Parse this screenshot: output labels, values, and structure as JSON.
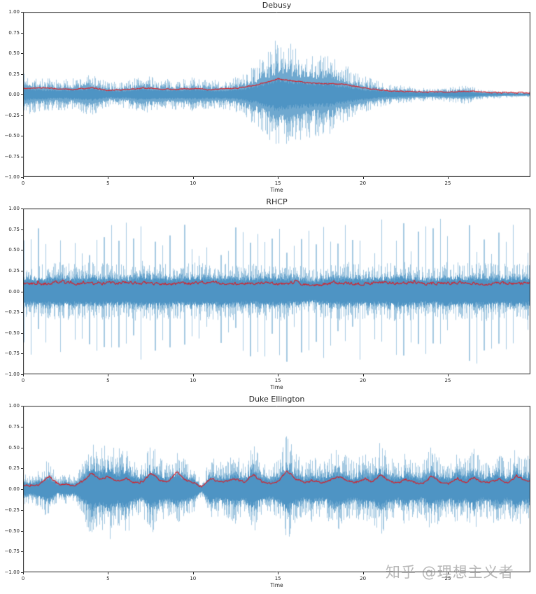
{
  "figure": {
    "background": "#ffffff"
  },
  "watermark": {
    "text": "知乎 @理想主义者",
    "color": "#8c8c8c"
  },
  "chart_data": [
    {
      "type": "area",
      "title": "Debusy",
      "xlabel": "Time",
      "xlim": [
        0,
        29.86
      ],
      "ylim": [
        -1,
        1
      ],
      "grid": false,
      "xtick_values": [
        0,
        5,
        10,
        15,
        20,
        25
      ],
      "xtick_labels": [
        "0",
        "5",
        "10",
        "15",
        "20",
        "25"
      ],
      "ytick_values": [
        1.0,
        0.75,
        0.5,
        0.25,
        0.0,
        -0.25,
        -0.5,
        -0.75,
        -1.0
      ],
      "ytick_labels": [
        "1.00",
        "0.75",
        "0.50",
        "0.25",
        "0.00",
        "−0.25",
        "−0.50",
        "−0.75",
        "−1.00"
      ],
      "series": [
        {
          "name": "waveform-envelope",
          "color": "rgba(31,119,180,0.40)",
          "dt": 1.0,
          "values": [
            0.22,
            0.18,
            0.16,
            0.17,
            0.22,
            0.13,
            0.14,
            0.21,
            0.16,
            0.16,
            0.18,
            0.15,
            0.16,
            0.22,
            0.38,
            0.6,
            0.5,
            0.44,
            0.42,
            0.3,
            0.2,
            0.13,
            0.1,
            0.08,
            0.07,
            0.08,
            0.1,
            0.05,
            0.04,
            0.03
          ]
        },
        {
          "name": "mean-amplitude-line",
          "color": "#dc1b22",
          "dt": 1.0,
          "values": [
            0.07,
            0.08,
            0.07,
            0.06,
            0.08,
            0.05,
            0.06,
            0.08,
            0.07,
            0.06,
            0.07,
            0.06,
            0.07,
            0.09,
            0.13,
            0.19,
            0.16,
            0.14,
            0.13,
            0.12,
            0.08,
            0.05,
            0.04,
            0.03,
            0.03,
            0.03,
            0.04,
            0.03,
            0.02,
            0.02
          ]
        }
      ],
      "texture": {
        "noise_base": 0.42,
        "noise_var": 0.75,
        "noise_pow": 1.4,
        "mid_frac": 0.6,
        "core_frac": 0.3,
        "spike": null,
        "rms_jitter": 0.012,
        "rms_spike": 0
      }
    },
    {
      "type": "area",
      "title": "RHCP",
      "xlabel": "Time",
      "xlim": [
        0,
        29.86
      ],
      "ylim": [
        -1,
        1
      ],
      "grid": false,
      "xtick_values": [
        0,
        5,
        10,
        15,
        20,
        25
      ],
      "xtick_labels": [
        "0",
        "5",
        "10",
        "15",
        "20",
        "25"
      ],
      "ytick_values": [
        1.0,
        0.75,
        0.5,
        0.25,
        0.0,
        -0.25,
        -0.5,
        -0.75,
        -1.0
      ],
      "ytick_labels": [
        "1.00",
        "0.75",
        "0.50",
        "0.25",
        "0.00",
        "−0.25",
        "−0.50",
        "−0.75",
        "−1.00"
      ],
      "series": [
        {
          "name": "waveform-envelope",
          "color": "rgba(31,119,180,0.40)",
          "dt": 1.0,
          "values": [
            0.3,
            0.28,
            0.32,
            0.29,
            0.31,
            0.3,
            0.28,
            0.33,
            0.3,
            0.29,
            0.31,
            0.3,
            0.32,
            0.28,
            0.3,
            0.31,
            0.29,
            0.24,
            0.3,
            0.31,
            0.3,
            0.29,
            0.32,
            0.3,
            0.28,
            0.31,
            0.3,
            0.32,
            0.29,
            0.3
          ]
        },
        {
          "name": "mean-amplitude-line",
          "color": "#dc1b22",
          "dt": 1.0,
          "values": [
            0.1,
            0.09,
            0.11,
            0.1,
            0.09,
            0.1,
            0.11,
            0.1,
            0.09,
            0.1,
            0.1,
            0.11,
            0.09,
            0.1,
            0.1,
            0.09,
            0.11,
            0.07,
            0.1,
            0.1,
            0.09,
            0.11,
            0.1,
            0.1,
            0.09,
            0.1,
            0.11,
            0.09,
            0.1,
            0.1
          ]
        }
      ],
      "texture": {
        "noise_base": 0.45,
        "noise_var": 0.7,
        "noise_pow": 1.3,
        "mid_frac": 0.6,
        "core_frac": 0.5,
        "spike": {
          "period": 0.43,
          "min": 0.42,
          "max": 0.88,
          "prob": 0.8
        },
        "rms_jitter": 0.03,
        "rms_spike": 0.06
      }
    },
    {
      "type": "area",
      "title": "Duke Ellington",
      "xlabel": "Time",
      "xlim": [
        0,
        29.86
      ],
      "ylim": [
        -1,
        1
      ],
      "grid": false,
      "xtick_values": [
        0,
        5,
        10,
        15,
        20,
        25
      ],
      "xtick_labels": [
        "0",
        "5",
        "10",
        "15",
        "20",
        "25"
      ],
      "ytick_values": [
        1.0,
        0.75,
        0.5,
        0.25,
        0.0,
        -0.25,
        -0.5,
        -0.75,
        -1.0
      ],
      "ytick_labels": [
        "1.00",
        "0.75",
        "0.50",
        "0.25",
        "0.00",
        "−0.25",
        "−0.50",
        "−0.75",
        "−1.00"
      ],
      "series": [
        {
          "name": "waveform-envelope",
          "color": "rgba(31,119,180,0.40)",
          "dt": 0.5,
          "values": [
            0.16,
            0.14,
            0.2,
            0.3,
            0.12,
            0.16,
            0.12,
            0.28,
            0.48,
            0.4,
            0.52,
            0.36,
            0.48,
            0.3,
            0.26,
            0.46,
            0.32,
            0.26,
            0.38,
            0.3,
            0.24,
            0.06,
            0.32,
            0.26,
            0.3,
            0.36,
            0.26,
            0.46,
            0.28,
            0.22,
            0.3,
            0.52,
            0.36,
            0.26,
            0.32,
            0.26,
            0.32,
            0.42,
            0.32,
            0.26,
            0.36,
            0.3,
            0.46,
            0.32,
            0.26,
            0.36,
            0.3,
            0.26,
            0.42,
            0.32,
            0.26,
            0.36,
            0.3,
            0.42,
            0.26,
            0.32,
            0.36,
            0.26,
            0.42,
            0.32
          ]
        },
        {
          "name": "mean-amplitude-line",
          "color": "#dc1b22",
          "dt": 0.5,
          "values": [
            0.05,
            0.04,
            0.06,
            0.16,
            0.05,
            0.06,
            0.04,
            0.09,
            0.19,
            0.12,
            0.15,
            0.1,
            0.13,
            0.08,
            0.07,
            0.2,
            0.1,
            0.08,
            0.21,
            0.11,
            0.07,
            0.03,
            0.13,
            0.08,
            0.1,
            0.12,
            0.08,
            0.18,
            0.08,
            0.06,
            0.1,
            0.22,
            0.12,
            0.08,
            0.1,
            0.08,
            0.1,
            0.15,
            0.1,
            0.07,
            0.12,
            0.08,
            0.18,
            0.1,
            0.07,
            0.12,
            0.08,
            0.06,
            0.16,
            0.08,
            0.06,
            0.12,
            0.08,
            0.14,
            0.07,
            0.09,
            0.12,
            0.07,
            0.16,
            0.1
          ]
        }
      ],
      "texture": {
        "noise_base": 0.4,
        "noise_var": 0.85,
        "noise_pow": 1.2,
        "mid_frac": 0.6,
        "core_frac": 0.45,
        "spike": null,
        "rms_jitter": 0.02,
        "rms_spike": 0.04
      }
    }
  ]
}
